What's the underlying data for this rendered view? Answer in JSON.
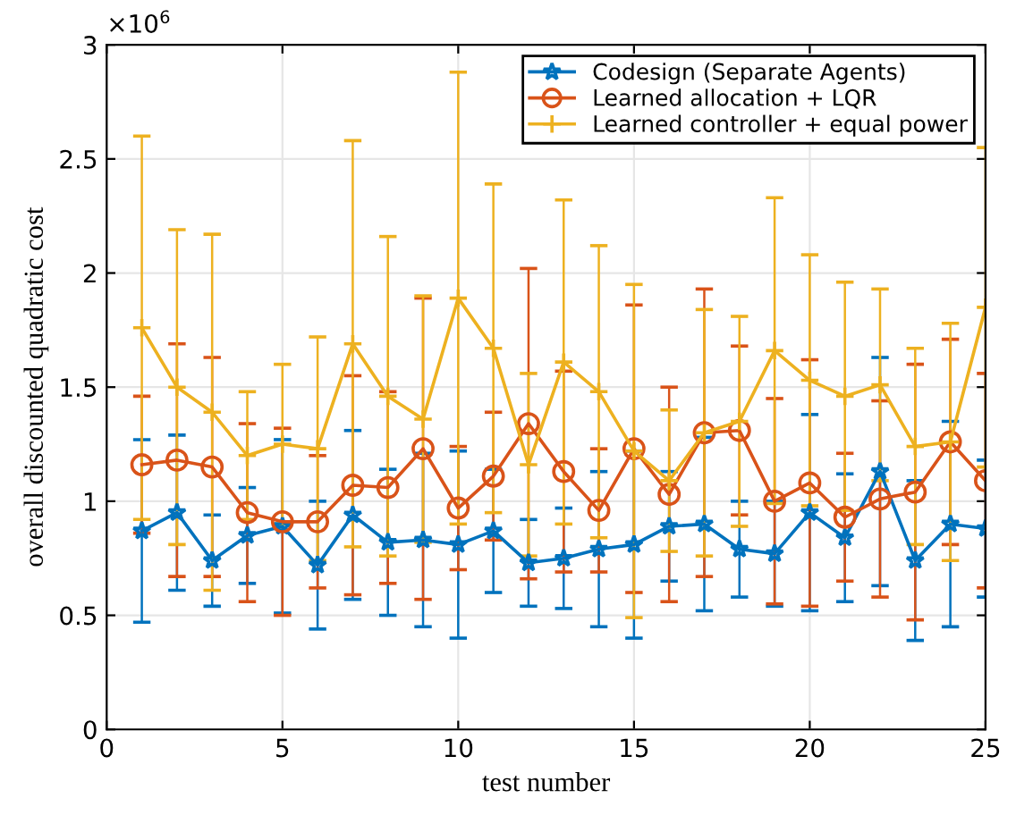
{
  "chart_data": {
    "type": "line",
    "xlabel": "test number",
    "ylabel": "overall discounted quadratic cost",
    "x": [
      1,
      2,
      3,
      4,
      5,
      6,
      7,
      8,
      9,
      10,
      11,
      12,
      13,
      14,
      15,
      16,
      17,
      18,
      19,
      20,
      21,
      22,
      23,
      24,
      25
    ],
    "series": [
      {
        "name": "Codesign (Separate Agents)",
        "color": "#0072bd",
        "marker": "star",
        "values": [
          0.87,
          0.95,
          0.74,
          0.85,
          0.89,
          0.72,
          0.94,
          0.82,
          0.83,
          0.81,
          0.87,
          0.73,
          0.75,
          0.79,
          0.81,
          0.89,
          0.9,
          0.79,
          0.77,
          0.95,
          0.84,
          1.13,
          0.74,
          0.9,
          0.88
        ],
        "errors": [
          0.4,
          0.34,
          0.2,
          0.21,
          0.38,
          0.28,
          0.37,
          0.32,
          0.38,
          0.41,
          0.27,
          0.19,
          0.22,
          0.34,
          0.41,
          0.24,
          0.38,
          0.21,
          0.23,
          0.43,
          0.28,
          0.5,
          0.35,
          0.45,
          0.3
        ]
      },
      {
        "name": "Learned allocation + LQR",
        "color": "#d95319",
        "marker": "circle",
        "values": [
          1.16,
          1.18,
          1.15,
          0.95,
          0.91,
          0.91,
          1.07,
          1.06,
          1.23,
          0.97,
          1.11,
          1.34,
          1.13,
          0.96,
          1.23,
          1.03,
          1.3,
          1.31,
          1.0,
          1.08,
          0.93,
          1.01,
          1.04,
          1.26,
          1.09
        ],
        "errors": [
          0.3,
          0.51,
          0.48,
          0.39,
          0.41,
          0.29,
          0.48,
          0.42,
          0.66,
          0.27,
          0.28,
          0.68,
          0.44,
          0.27,
          0.63,
          0.47,
          0.63,
          0.37,
          0.45,
          0.54,
          0.28,
          0.43,
          0.56,
          0.45,
          0.47
        ]
      },
      {
        "name": "Learned controller + equal power",
        "color": "#edb120",
        "marker": "cross",
        "values": [
          1.76,
          1.5,
          1.39,
          1.2,
          1.25,
          1.23,
          1.69,
          1.46,
          1.36,
          1.89,
          1.67,
          1.16,
          1.61,
          1.48,
          1.22,
          1.09,
          1.3,
          1.35,
          1.66,
          1.53,
          1.46,
          1.51,
          1.24,
          1.26,
          1.85
        ],
        "errors": [
          0.84,
          0.69,
          0.78,
          0.28,
          0.35,
          0.49,
          0.89,
          0.7,
          0.54,
          0.99,
          0.72,
          0.4,
          0.71,
          0.64,
          0.73,
          0.31,
          0.54,
          0.46,
          0.67,
          0.55,
          0.5,
          0.42,
          0.43,
          0.52,
          0.7
        ]
      }
    ],
    "xlim": [
      0,
      25
    ],
    "xticks": [
      0,
      5,
      10,
      15,
      20,
      25
    ],
    "ylim": [
      0,
      3
    ],
    "yticks": [
      0,
      0.5,
      1,
      1.5,
      2,
      2.5,
      3
    ],
    "annotations": [
      "×10$^{6}$"
    ],
    "grid": true,
    "legend": "top right"
  }
}
